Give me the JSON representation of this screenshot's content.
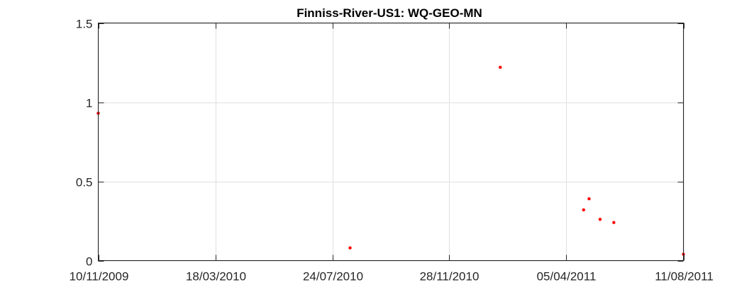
{
  "chart_data": {
    "type": "scatter",
    "title": "Finniss-River-US1: WQ-GEO-MN",
    "xlabel": "",
    "ylabel": "",
    "x_axis_type": "date",
    "xlim": [
      "2009-11-10",
      "2011-08-11"
    ],
    "ylim": [
      0,
      1.5
    ],
    "x_ticks": [
      {
        "date": "2009-11-10",
        "label": "10/11/2009"
      },
      {
        "date": "2010-03-18",
        "label": "18/03/2010"
      },
      {
        "date": "2010-07-24",
        "label": "24/07/2010"
      },
      {
        "date": "2010-11-28",
        "label": "28/11/2010"
      },
      {
        "date": "2011-04-05",
        "label": "05/04/2011"
      },
      {
        "date": "2011-08-11",
        "label": "11/08/2011"
      }
    ],
    "y_ticks": [
      {
        "value": 0,
        "label": "0"
      },
      {
        "value": 0.5,
        "label": "0.5"
      },
      {
        "value": 1,
        "label": "1"
      },
      {
        "value": 1.5,
        "label": "1.5"
      }
    ],
    "grid": true,
    "marker_color": "#ff0000",
    "series": [
      {
        "points": [
          {
            "x": "2009-11-10",
            "y": 0.93
          },
          {
            "x": "2010-08-12",
            "y": 0.08
          },
          {
            "x": "2011-01-23",
            "y": 1.22
          },
          {
            "x": "2011-04-24",
            "y": 0.32
          },
          {
            "x": "2011-04-30",
            "y": 0.39
          },
          {
            "x": "2011-05-12",
            "y": 0.26
          },
          {
            "x": "2011-05-27",
            "y": 0.24
          },
          {
            "x": "2011-08-11",
            "y": 0.04
          }
        ]
      }
    ]
  }
}
